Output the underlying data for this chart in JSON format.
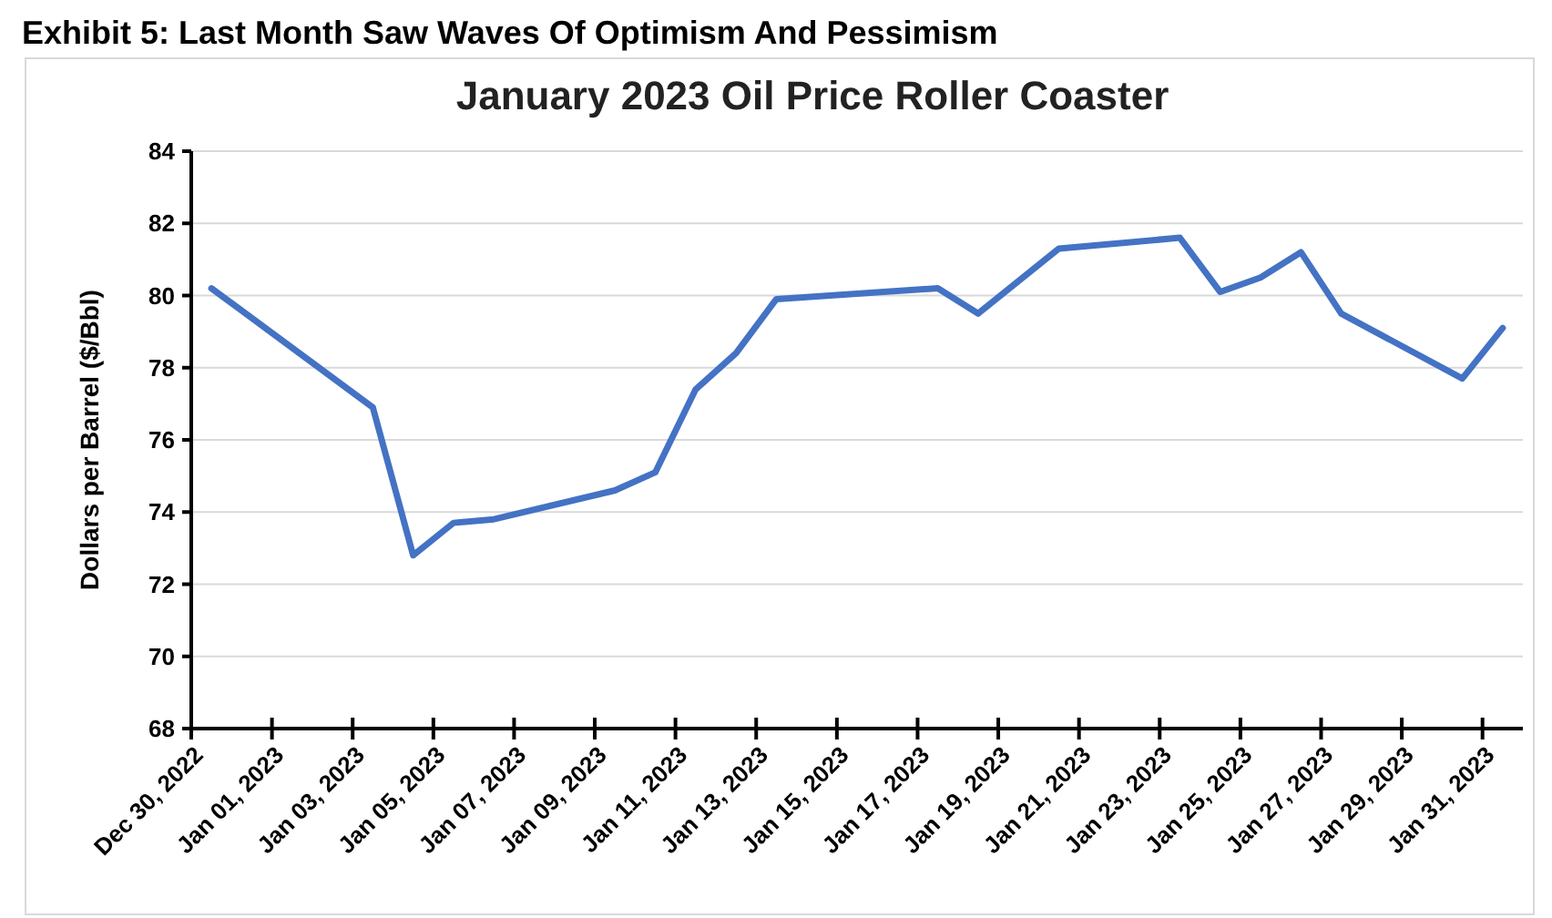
{
  "chart_data": {
    "type": "line",
    "title": "January 2023 Oil Price Roller Coaster",
    "ylabel": "Dollars per Barrel ($/Bbl)",
    "annotations": [
      "Exhibit 5: Last Month Saw Waves Of Optimism And Pessimism"
    ],
    "x": [
      "2022-12-30T12:00",
      "2023-01-03T12:00",
      "2023-01-04T12:00",
      "2023-01-05T12:00",
      "2023-01-06T12:00",
      "2023-01-09T12:00",
      "2023-01-10T12:00",
      "2023-01-11T12:00",
      "2023-01-12T12:00",
      "2023-01-13T12:00",
      "2023-01-17T12:00",
      "2023-01-18T12:00",
      "2023-01-20T12:00",
      "2023-01-23T12:00",
      "2023-01-24T12:00",
      "2023-01-25T12:00",
      "2023-01-26T12:00",
      "2023-01-27T12:00",
      "2023-01-30T12:00",
      "2023-01-31T12:00"
    ],
    "series": [
      {
        "color": "#4472c4",
        "values": [
          80.2,
          76.9,
          72.8,
          73.7,
          73.8,
          74.6,
          75.1,
          77.4,
          78.4,
          79.9,
          80.2,
          79.5,
          81.3,
          81.6,
          80.1,
          80.5,
          81.2,
          79.5,
          77.7,
          79.1
        ]
      }
    ],
    "xlim": [
      "2022-12-30",
      "2023-02-01"
    ],
    "xticks": [
      {
        "value": "2022-12-30",
        "label": "Dec 30, 2022"
      },
      {
        "value": "2023-01-01",
        "label": "Jan 01, 2023"
      },
      {
        "value": "2023-01-03",
        "label": "Jan 03, 2023"
      },
      {
        "value": "2023-01-05",
        "label": "Jan 05, 2023"
      },
      {
        "value": "2023-01-07",
        "label": "Jan 07, 2023"
      },
      {
        "value": "2023-01-09",
        "label": "Jan 09, 2023"
      },
      {
        "value": "2023-01-11",
        "label": "Jan 11, 2023"
      },
      {
        "value": "2023-01-13",
        "label": "Jan 13, 2023"
      },
      {
        "value": "2023-01-15",
        "label": "Jan 15, 2023"
      },
      {
        "value": "2023-01-17",
        "label": "Jan 17, 2023"
      },
      {
        "value": "2023-01-19",
        "label": "Jan 19, 2023"
      },
      {
        "value": "2023-01-21",
        "label": "Jan 21, 2023"
      },
      {
        "value": "2023-01-23",
        "label": "Jan 23, 2023"
      },
      {
        "value": "2023-01-25",
        "label": "Jan 25, 2023"
      },
      {
        "value": "2023-01-27",
        "label": "Jan 27, 2023"
      },
      {
        "value": "2023-01-29",
        "label": "Jan 29, 2023"
      },
      {
        "value": "2023-01-31",
        "label": "Jan 31, 2023"
      }
    ],
    "ylim": [
      68,
      84
    ],
    "yticks": [
      68,
      70,
      72,
      74,
      76,
      78,
      80,
      82,
      84
    ],
    "grid": "y",
    "marker": "none",
    "line_style": "solid"
  }
}
